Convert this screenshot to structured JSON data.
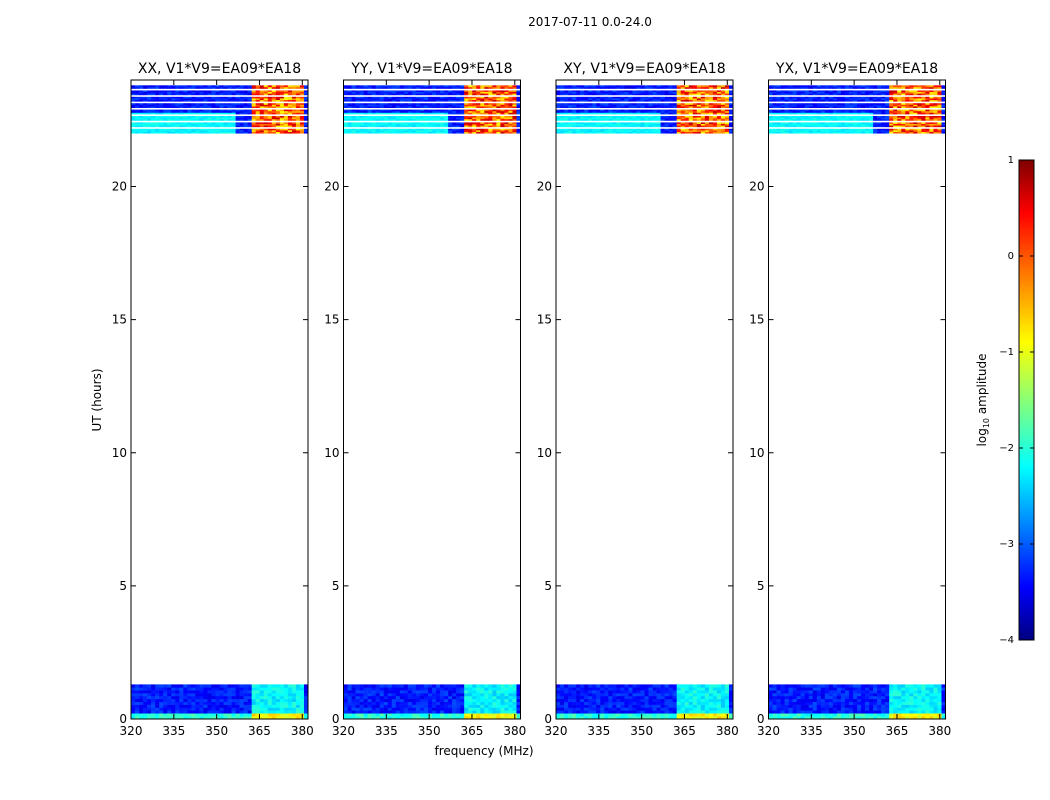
{
  "figure": {
    "suptitle": "2017-07-11 0.0-24.0",
    "xlabel": "frequency (MHz)",
    "ylabel": "UT (hours)"
  },
  "chart_data": {
    "type": "heatmap",
    "xlim": [
      320,
      382
    ],
    "ylim": [
      0,
      24
    ],
    "xticks": [
      320,
      335,
      350,
      365,
      380
    ],
    "yticks": [
      0,
      5,
      10,
      15,
      20
    ],
    "data_time_ranges": [
      [
        0.0,
        1.3
      ],
      [
        22.0,
        23.8
      ]
    ],
    "colorbar": {
      "label_prefix": "log",
      "label_sub": "10",
      "label_suffix": " amplitude",
      "min": -4,
      "max": 1,
      "ticks": [
        1,
        0,
        -1,
        -2,
        -3,
        -4
      ],
      "tick_labels": [
        "1",
        "0",
        "−1",
        "−2",
        "−3",
        "−4"
      ],
      "colormap": "jet"
    },
    "panels": [
      {
        "title": "XX, V1*V9=EA09*EA18",
        "polarization": "XX"
      },
      {
        "title": "YY, V1*V9=EA09*EA18",
        "polarization": "YY"
      },
      {
        "title": "XY, V1*V9=EA09*EA18",
        "polarization": "XY"
      },
      {
        "title": "YX, V1*V9=EA09*EA18",
        "polarization": "YX"
      }
    ]
  }
}
